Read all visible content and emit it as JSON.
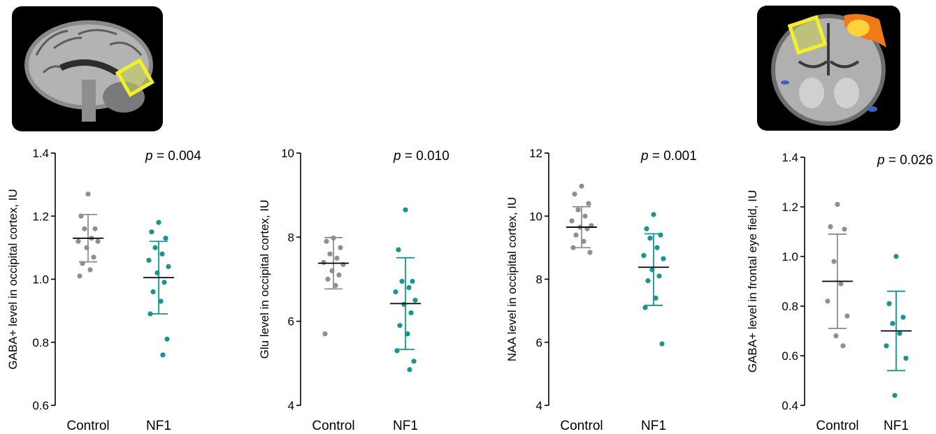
{
  "images": {
    "left": {
      "icon": "sagittal-mri-brain-scan-with-occipital-voxel"
    },
    "right": {
      "icon": "coronal-mri-brain-scan-with-frontal-eye-field-voxel"
    }
  },
  "colors": {
    "control": "#8f8f8f",
    "nf1": "#17958f",
    "mean": "#000000",
    "axis": "#000000"
  },
  "chart_data": [
    {
      "type": "scatter",
      "title": "",
      "annotation": {
        "italic": "p",
        "rest": " = 0.004"
      },
      "categories": [
        "Control",
        "NF1"
      ],
      "ylabel": "GABA+ level in occipital cortex, IU",
      "ylim": [
        0.6,
        1.4
      ],
      "yticks": [
        0.6,
        0.8,
        1.0,
        1.2,
        1.4
      ],
      "ytick_labels": [
        "0.6",
        "0.8",
        "1.0",
        "1.2",
        "1.4"
      ],
      "series": [
        {
          "group": "Control",
          "mean": 1.13,
          "sd_low": 1.055,
          "sd_high": 1.205,
          "points": [
            1.27,
            1.2,
            1.16,
            1.16,
            1.13,
            1.12,
            1.12,
            1.1,
            1.07,
            1.05,
            1.03,
            1.01
          ]
        },
        {
          "group": "NF1",
          "mean": 1.005,
          "sd_low": 0.89,
          "sd_high": 1.12,
          "points": [
            1.18,
            1.15,
            1.13,
            1.1,
            1.08,
            1.06,
            1.04,
            1.02,
            0.99,
            0.96,
            0.93,
            0.89,
            0.81,
            0.76
          ]
        }
      ]
    },
    {
      "type": "scatter",
      "title": "",
      "annotation": {
        "italic": "p",
        "rest": " = 0.010"
      },
      "categories": [
        "Control",
        "NF1"
      ],
      "ylabel": "Glu level in occipital cortex, IU",
      "ylim": [
        4,
        10
      ],
      "yticks": [
        4,
        6,
        8,
        10
      ],
      "ytick_labels": [
        "4",
        "6",
        "8",
        "10"
      ],
      "series": [
        {
          "group": "Control",
          "mean": 7.38,
          "sd_low": 6.77,
          "sd_high": 7.99,
          "points": [
            7.98,
            7.9,
            7.75,
            7.6,
            7.5,
            7.4,
            7.35,
            7.2,
            7.1,
            7.0,
            6.85,
            5.7
          ]
        },
        {
          "group": "NF1",
          "mean": 6.42,
          "sd_low": 5.33,
          "sd_high": 7.51,
          "points": [
            8.65,
            7.7,
            6.95,
            6.95,
            6.8,
            6.7,
            6.5,
            6.4,
            6.2,
            5.9,
            5.7,
            5.3,
            5.05,
            4.85
          ]
        }
      ]
    },
    {
      "type": "scatter",
      "title": "",
      "annotation": {
        "italic": "p",
        "rest": " = 0.001"
      },
      "categories": [
        "Control",
        "NF1"
      ],
      "ylabel": "NAA level in occipital cortex, IU",
      "ylim": [
        4,
        12
      ],
      "yticks": [
        4,
        6,
        8,
        10,
        12
      ],
      "ytick_labels": [
        "4",
        "6",
        "8",
        "10",
        "12"
      ],
      "series": [
        {
          "group": "Control",
          "mean": 9.65,
          "sd_low": 9.0,
          "sd_high": 10.3,
          "points": [
            10.95,
            10.7,
            10.4,
            10.2,
            10.0,
            9.85,
            9.7,
            9.65,
            9.6,
            9.4,
            9.2,
            9.0,
            8.85
          ]
        },
        {
          "group": "NF1",
          "mean": 8.38,
          "sd_low": 7.17,
          "sd_high": 9.44,
          "points": [
            10.05,
            9.6,
            9.4,
            9.3,
            9.0,
            8.75,
            8.65,
            8.3,
            8.1,
            7.95,
            7.4,
            7.1,
            5.95
          ]
        }
      ]
    },
    {
      "type": "scatter",
      "title": "",
      "annotation": {
        "italic": "p",
        "rest": " = 0.026"
      },
      "categories": [
        "Control",
        "NF1"
      ],
      "ylabel": "GABA+ level in frontal eye field, IU",
      "ylim": [
        0.4,
        1.4
      ],
      "yticks": [
        0.4,
        0.6,
        0.8,
        1.0,
        1.2,
        1.4
      ],
      "ytick_labels": [
        "0.4",
        "0.6",
        "0.8",
        "1.0",
        "1.2",
        "1.4"
      ],
      "series": [
        {
          "group": "Control",
          "mean": 0.9,
          "sd_low": 0.71,
          "sd_high": 1.09,
          "points": [
            1.21,
            1.12,
            1.11,
            0.98,
            0.89,
            0.82,
            0.76,
            0.68,
            0.64
          ]
        },
        {
          "group": "NF1",
          "mean": 0.7,
          "sd_low": 0.54,
          "sd_high": 0.86,
          "points": [
            1.0,
            0.81,
            0.755,
            0.73,
            0.69,
            0.64,
            0.59,
            0.44
          ]
        }
      ]
    }
  ]
}
